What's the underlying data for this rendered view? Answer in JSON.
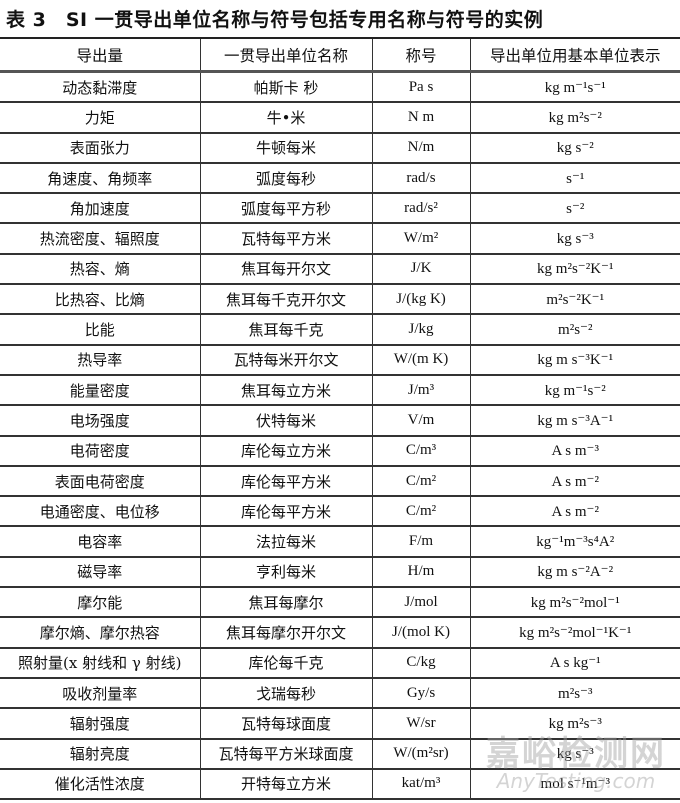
{
  "title": "表 3　SI 一贯导出单位名称与符号包括专用名称与符号的实例",
  "headers": [
    "导出量",
    "一贯导出单位名称",
    "称号",
    "导出单位用基本单位表示"
  ],
  "rows": [
    [
      "动态黏滞度",
      "帕斯卡 秒",
      "Pa s",
      "kg m⁻¹s⁻¹"
    ],
    [
      "力矩",
      "牛•米",
      "N m",
      "kg m²s⁻²"
    ],
    [
      "表面张力",
      "牛顿每米",
      "N/m",
      "kg s⁻²"
    ],
    [
      "角速度、角频率",
      "弧度每秒",
      "rad/s",
      "s⁻¹"
    ],
    [
      "角加速度",
      "弧度每平方秒",
      "rad/s²",
      "s⁻²"
    ],
    [
      "热流密度、辐照度",
      "瓦特每平方米",
      "W/m²",
      "kg s⁻³"
    ],
    [
      "热容、熵",
      "焦耳每开尔文",
      "J/K",
      "kg m²s⁻²K⁻¹"
    ],
    [
      "比热容、比熵",
      "焦耳每千克开尔文",
      "J/(kg K)",
      "m²s⁻²K⁻¹"
    ],
    [
      "比能",
      "焦耳每千克",
      "J/kg",
      "m²s⁻²"
    ],
    [
      "热导率",
      "瓦特每米开尔文",
      "W/(m K)",
      "kg m s⁻³K⁻¹"
    ],
    [
      "能量密度",
      "焦耳每立方米",
      "J/m³",
      "kg m⁻¹s⁻²"
    ],
    [
      "电场强度",
      "伏特每米",
      "V/m",
      "kg m s⁻³A⁻¹"
    ],
    [
      "电荷密度",
      "库伦每立方米",
      "C/m³",
      "A s m⁻³"
    ],
    [
      "表面电荷密度",
      "库伦每平方米",
      "C/m²",
      "A s m⁻²"
    ],
    [
      "电通密度、电位移",
      "库伦每平方米",
      "C/m²",
      "A s m⁻²"
    ],
    [
      "电容率",
      "法拉每米",
      "F/m",
      "kg⁻¹m⁻³s⁴A²"
    ],
    [
      "磁导率",
      "亨利每米",
      "H/m",
      "kg m s⁻²A⁻²"
    ],
    [
      "摩尔能",
      "焦耳每摩尔",
      "J/mol",
      "kg m²s⁻²mol⁻¹"
    ],
    [
      "摩尔熵、摩尔热容",
      "焦耳每摩尔开尔文",
      "J/(mol K)",
      "kg m²s⁻²mol⁻¹K⁻¹"
    ],
    [
      "照射量(x 射线和 γ 射线)",
      "库伦每千克",
      "C/kg",
      "A s kg⁻¹"
    ],
    [
      "吸收剂量率",
      "戈瑞每秒",
      "Gy/s",
      "m²s⁻³"
    ],
    [
      "辐射强度",
      "瓦特每球面度",
      "W/sr",
      "kg m²s⁻³"
    ],
    [
      "辐射亮度",
      "瓦特每平方米球面度",
      "W/(m²sr)",
      "kg s⁻³"
    ],
    [
      "催化活性浓度",
      "开特每立方米",
      "kat/m³",
      "mol s⁻¹m⁻³"
    ]
  ],
  "watermark": {
    "cn": "嘉峪检测网",
    "en": "AnyTesting.com"
  }
}
